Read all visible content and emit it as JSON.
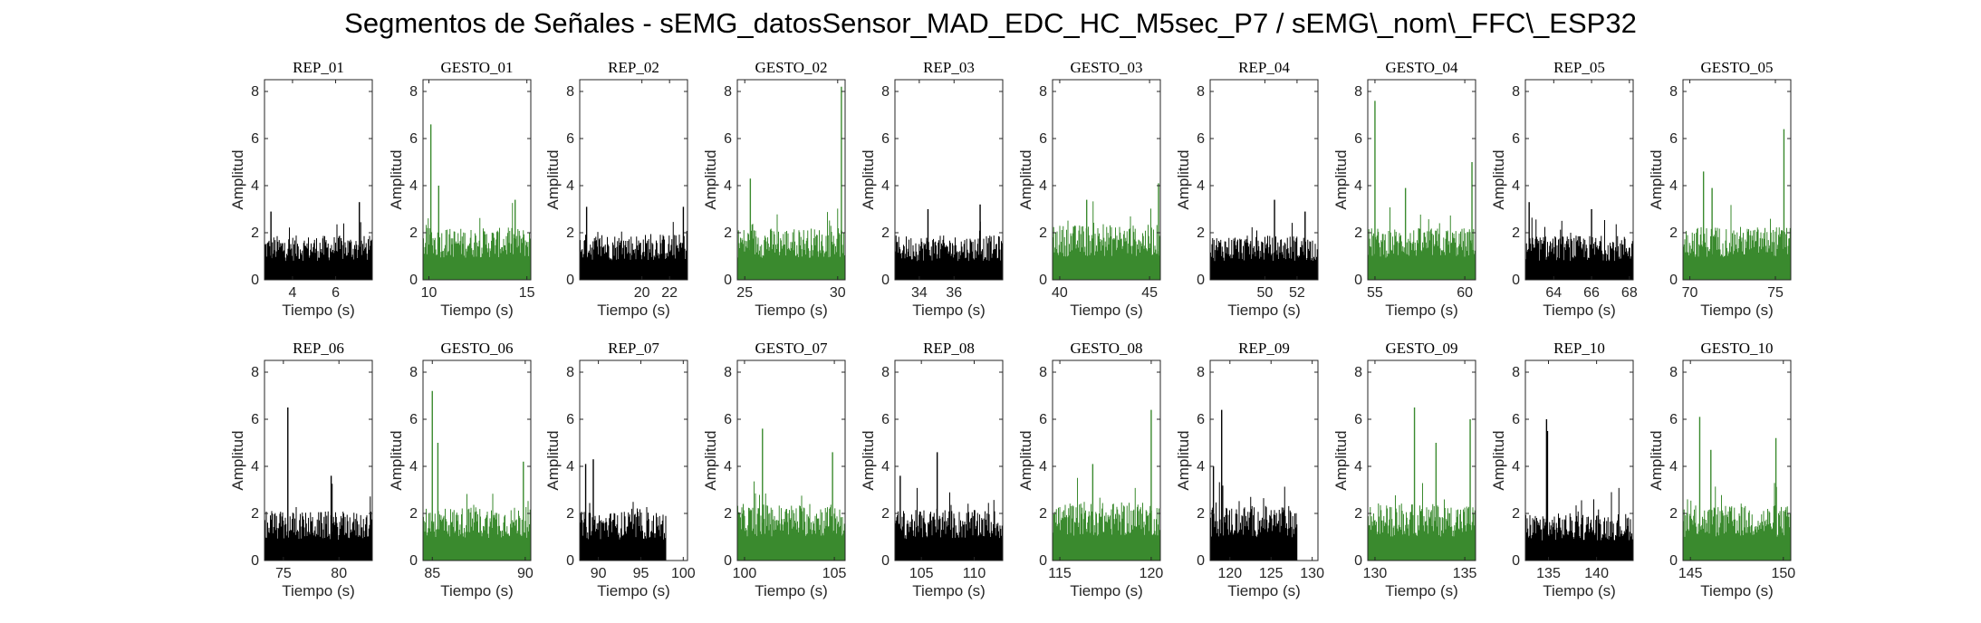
{
  "title": "Segmentos de Señales - sEMG_datosSensor_MAD_EDC_HC_M5sec_P7 / sEMG\\_nom\\_FFC\\_ESP32",
  "colors": {
    "rep": "#000000",
    "gesto": "#3a8a2e",
    "axis": "#262626"
  },
  "chart_data": [
    {
      "type": "area",
      "title": "REP_01",
      "kind": "rep",
      "xlabel": "Tiempo (s)",
      "ylabel": "Amplitud",
      "xlim": [
        2.7,
        7.7
      ],
      "ylim": [
        0,
        8.5
      ],
      "xticks": [
        4,
        6
      ],
      "yticks": [
        0,
        2,
        4,
        6,
        8
      ],
      "data_x_range": [
        2.7,
        7.7
      ],
      "baseline": 1.45,
      "peaks": [
        [
          3.0,
          2.9
        ],
        [
          7.1,
          3.3
        ]
      ]
    },
    {
      "type": "area",
      "title": "GESTO_01",
      "kind": "gesto",
      "xlabel": "Tiempo (s)",
      "ylabel": "Amplitud",
      "xlim": [
        9.7,
        15.2
      ],
      "ylim": [
        0,
        8.5
      ],
      "xticks": [
        10,
        15
      ],
      "yticks": [
        0,
        2,
        4,
        6,
        8
      ],
      "data_x_range": [
        9.7,
        15.2
      ],
      "baseline": 1.7,
      "peaks": [
        [
          10.1,
          6.6
        ],
        [
          10.5,
          4.0
        ],
        [
          14.4,
          3.4
        ]
      ]
    },
    {
      "type": "area",
      "title": "REP_02",
      "kind": "rep",
      "xlabel": "Tiempo (s)",
      "ylabel": "Amplitud",
      "xlim": [
        15.5,
        23.3
      ],
      "ylim": [
        0,
        8.5
      ],
      "xticks": [
        20,
        22
      ],
      "yticks": [
        0,
        2,
        4,
        6,
        8
      ],
      "data_x_range": [
        15.5,
        23.3
      ],
      "baseline": 1.5,
      "peaks": [
        [
          16.0,
          3.1
        ],
        [
          23.0,
          3.1
        ]
      ]
    },
    {
      "type": "area",
      "title": "GESTO_02",
      "kind": "gesto",
      "xlabel": "Tiempo (s)",
      "ylabel": "Amplitud",
      "xlim": [
        24.6,
        30.4
      ],
      "ylim": [
        0,
        8.5
      ],
      "xticks": [
        25,
        30
      ],
      "yticks": [
        0,
        2,
        4,
        6,
        8
      ],
      "data_x_range": [
        24.6,
        30.4
      ],
      "baseline": 1.7,
      "peaks": [
        [
          25.3,
          4.3
        ],
        [
          30.2,
          8.2
        ]
      ]
    },
    {
      "type": "area",
      "title": "REP_03",
      "kind": "rep",
      "xlabel": "Tiempo (s)",
      "ylabel": "Amplitud",
      "xlim": [
        32.6,
        38.8
      ],
      "ylim": [
        0,
        8.5
      ],
      "xticks": [
        34,
        36
      ],
      "yticks": [
        0,
        2,
        4,
        6,
        8
      ],
      "data_x_range": [
        32.6,
        38.8
      ],
      "baseline": 1.45,
      "peaks": [
        [
          34.5,
          3.0
        ],
        [
          37.5,
          3.2
        ]
      ]
    },
    {
      "type": "area",
      "title": "GESTO_03",
      "kind": "gesto",
      "xlabel": "Tiempo (s)",
      "ylabel": "Amplitud",
      "xlim": [
        39.6,
        45.6
      ],
      "ylim": [
        0,
        8.5
      ],
      "xticks": [
        40,
        45
      ],
      "yticks": [
        0,
        2,
        4,
        6,
        8
      ],
      "data_x_range": [
        39.6,
        45.6
      ],
      "baseline": 1.8,
      "peaks": [
        [
          41.5,
          3.4
        ],
        [
          45.5,
          4.1
        ]
      ]
    },
    {
      "type": "area",
      "title": "REP_04",
      "kind": "rep",
      "xlabel": "Tiempo (s)",
      "ylabel": "Amplitud",
      "xlim": [
        46.6,
        53.3
      ],
      "ylim": [
        0,
        8.5
      ],
      "xticks": [
        50,
        52
      ],
      "yticks": [
        0,
        2,
        4,
        6,
        8
      ],
      "data_x_range": [
        46.6,
        53.3
      ],
      "baseline": 1.45,
      "peaks": [
        [
          50.6,
          3.4
        ],
        [
          52.5,
          2.9
        ]
      ]
    },
    {
      "type": "area",
      "title": "GESTO_04",
      "kind": "gesto",
      "xlabel": "Tiempo (s)",
      "ylabel": "Amplitud",
      "xlim": [
        54.6,
        60.6
      ],
      "ylim": [
        0,
        8.5
      ],
      "xticks": [
        55,
        60
      ],
      "yticks": [
        0,
        2,
        4,
        6,
        8
      ],
      "data_x_range": [
        54.6,
        60.6
      ],
      "baseline": 1.7,
      "peaks": [
        [
          55.0,
          7.6
        ],
        [
          56.7,
          3.9
        ],
        [
          60.4,
          5.0
        ]
      ]
    },
    {
      "type": "area",
      "title": "REP_05",
      "kind": "rep",
      "xlabel": "Tiempo (s)",
      "ylabel": "Amplitud",
      "xlim": [
        62.5,
        68.2
      ],
      "ylim": [
        0,
        8.5
      ],
      "xticks": [
        64,
        66,
        68
      ],
      "yticks": [
        0,
        2,
        4,
        6,
        8
      ],
      "data_x_range": [
        62.5,
        68.2
      ],
      "baseline": 1.45,
      "peaks": [
        [
          62.7,
          3.3
        ],
        [
          66.0,
          3.0
        ]
      ]
    },
    {
      "type": "area",
      "title": "GESTO_05",
      "kind": "gesto",
      "xlabel": "Tiempo (s)",
      "ylabel": "Amplitud",
      "xlim": [
        69.6,
        75.9
      ],
      "ylim": [
        0,
        8.5
      ],
      "xticks": [
        70,
        75
      ],
      "yticks": [
        0,
        2,
        4,
        6,
        8
      ],
      "data_x_range": [
        69.6,
        75.9
      ],
      "baseline": 1.75,
      "peaks": [
        [
          70.8,
          4.6
        ],
        [
          71.3,
          3.9
        ],
        [
          75.5,
          6.4
        ]
      ]
    },
    {
      "type": "area",
      "title": "REP_06",
      "kind": "rep",
      "xlabel": "Tiempo (s)",
      "ylabel": "Amplitud",
      "xlim": [
        73.3,
        83.0
      ],
      "ylim": [
        0,
        8.5
      ],
      "xticks": [
        75,
        80
      ],
      "yticks": [
        0,
        2,
        4,
        6,
        8
      ],
      "data_x_range": [
        73.3,
        83.0
      ],
      "baseline": 1.6,
      "peaks": [
        [
          75.4,
          6.5
        ],
        [
          79.3,
          3.6
        ]
      ]
    },
    {
      "type": "area",
      "title": "GESTO_06",
      "kind": "gesto",
      "xlabel": "Tiempo (s)",
      "ylabel": "Amplitud",
      "xlim": [
        84.5,
        90.3
      ],
      "ylim": [
        0,
        8.5
      ],
      "xticks": [
        85,
        90
      ],
      "yticks": [
        0,
        2,
        4,
        6,
        8
      ],
      "data_x_range": [
        84.5,
        90.3
      ],
      "baseline": 1.75,
      "peaks": [
        [
          85.0,
          7.2
        ],
        [
          85.3,
          5.0
        ],
        [
          89.9,
          4.2
        ]
      ]
    },
    {
      "type": "area",
      "title": "REP_07",
      "kind": "rep",
      "xlabel": "Tiempo (s)",
      "ylabel": "Amplitud",
      "xlim": [
        87.8,
        100.5
      ],
      "ylim": [
        0,
        8.5
      ],
      "xticks": [
        90,
        95,
        100
      ],
      "yticks": [
        0,
        2,
        4,
        6,
        8
      ],
      "data_x_range": [
        87.8,
        98.0
      ],
      "baseline": 1.6,
      "peaks": [
        [
          88.5,
          4.1
        ],
        [
          89.4,
          4.3
        ]
      ]
    },
    {
      "type": "area",
      "title": "GESTO_07",
      "kind": "gesto",
      "xlabel": "Tiempo (s)",
      "ylabel": "Amplitud",
      "xlim": [
        99.6,
        105.6
      ],
      "ylim": [
        0,
        8.5
      ],
      "xticks": [
        100,
        105
      ],
      "yticks": [
        0,
        2,
        4,
        6,
        8
      ],
      "data_x_range": [
        99.6,
        105.6
      ],
      "baseline": 1.85,
      "peaks": [
        [
          101.0,
          5.6
        ],
        [
          104.9,
          4.6
        ]
      ]
    },
    {
      "type": "area",
      "title": "REP_08",
      "kind": "rep",
      "xlabel": "Tiempo (s)",
      "ylabel": "Amplitud",
      "xlim": [
        102.5,
        112.7
      ],
      "ylim": [
        0,
        8.5
      ],
      "xticks": [
        105,
        110
      ],
      "yticks": [
        0,
        2,
        4,
        6,
        8
      ],
      "data_x_range": [
        102.5,
        112.7
      ],
      "baseline": 1.65,
      "peaks": [
        [
          106.5,
          4.6
        ],
        [
          103.0,
          3.6
        ]
      ]
    },
    {
      "type": "area",
      "title": "GESTO_08",
      "kind": "gesto",
      "xlabel": "Tiempo (s)",
      "ylabel": "Amplitud",
      "xlim": [
        114.6,
        120.5
      ],
      "ylim": [
        0,
        8.5
      ],
      "xticks": [
        115,
        120
      ],
      "yticks": [
        0,
        2,
        4,
        6,
        8
      ],
      "data_x_range": [
        114.6,
        120.5
      ],
      "baseline": 1.9,
      "peaks": [
        [
          116.8,
          4.1
        ],
        [
          120.0,
          6.4
        ]
      ]
    },
    {
      "type": "area",
      "title": "REP_09",
      "kind": "rep",
      "xlabel": "Tiempo (s)",
      "ylabel": "Amplitud",
      "xlim": [
        117.6,
        130.7
      ],
      "ylim": [
        0,
        8.5
      ],
      "xticks": [
        120,
        125,
        130
      ],
      "yticks": [
        0,
        2,
        4,
        6,
        8
      ],
      "data_x_range": [
        117.6,
        128.2
      ],
      "baseline": 1.8,
      "peaks": [
        [
          119.0,
          6.4
        ],
        [
          118.0,
          4.0
        ]
      ]
    },
    {
      "type": "area",
      "title": "GESTO_09",
      "kind": "gesto",
      "xlabel": "Tiempo (s)",
      "ylabel": "Amplitud",
      "xlim": [
        129.6,
        135.6
      ],
      "ylim": [
        0,
        8.5
      ],
      "xticks": [
        130,
        135
      ],
      "yticks": [
        0,
        2,
        4,
        6,
        8
      ],
      "data_x_range": [
        129.6,
        135.6
      ],
      "baseline": 1.85,
      "peaks": [
        [
          132.2,
          6.5
        ],
        [
          135.3,
          6.0
        ],
        [
          133.4,
          5.0
        ]
      ]
    },
    {
      "type": "area",
      "title": "REP_10",
      "kind": "rep",
      "xlabel": "Tiempo (s)",
      "ylabel": "Amplitud",
      "xlim": [
        132.6,
        143.8
      ],
      "ylim": [
        0,
        8.5
      ],
      "xticks": [
        135,
        140
      ],
      "yticks": [
        0,
        2,
        4,
        6,
        8
      ],
      "data_x_range": [
        132.6,
        143.8
      ],
      "baseline": 1.55,
      "peaks": [
        [
          134.8,
          6.0
        ],
        [
          134.9,
          5.5
        ]
      ]
    },
    {
      "type": "area",
      "title": "GESTO_10",
      "kind": "gesto",
      "xlabel": "Tiempo (s)",
      "ylabel": "Amplitud",
      "xlim": [
        144.6,
        150.4
      ],
      "ylim": [
        0,
        8.5
      ],
      "xticks": [
        145,
        150
      ],
      "yticks": [
        0,
        2,
        4,
        6,
        8
      ],
      "data_x_range": [
        144.6,
        150.4
      ],
      "baseline": 1.8,
      "peaks": [
        [
          145.5,
          6.1
        ],
        [
          146.1,
          4.7
        ],
        [
          149.6,
          5.2
        ]
      ]
    }
  ]
}
